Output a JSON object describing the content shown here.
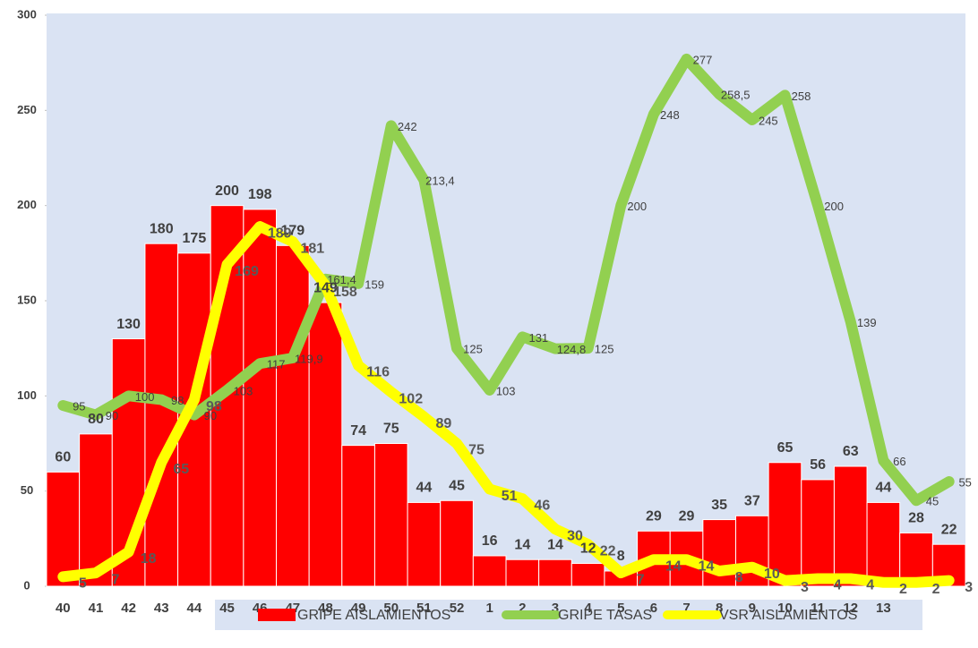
{
  "chart_data": {
    "type": "bar_line",
    "categories": [
      "40",
      "41",
      "42",
      "43",
      "44",
      "45",
      "46",
      "47",
      "48",
      "49",
      "50",
      "51",
      "52",
      "1",
      "2",
      "3",
      "4",
      "5",
      "6",
      "7",
      "8",
      "9",
      "10",
      "11",
      "12",
      "13",
      null,
      null
    ],
    "series": [
      {
        "name": "GRIPE AISLAMIENTOS",
        "type": "bar",
        "color": "#ff0000",
        "values": [
          60,
          80,
          130,
          180,
          175,
          200,
          198,
          179,
          149,
          74,
          75,
          44,
          45,
          16,
          14,
          14,
          12,
          8,
          29,
          29,
          35,
          37,
          65,
          56,
          63,
          44,
          28,
          22
        ]
      },
      {
        "name": "GRIPE TASAS",
        "type": "line",
        "color": "#92d050",
        "values": [
          95,
          90,
          100,
          98,
          90,
          103,
          117,
          119.9,
          161.4,
          159,
          242,
          213.4,
          125,
          103,
          131,
          124.8,
          125,
          200,
          248,
          277,
          258.5,
          245,
          258,
          200,
          139,
          66,
          45,
          55
        ],
        "value_labels": [
          "95",
          "90",
          "100",
          "98",
          "90",
          "103",
          "117",
          "119,9",
          "161,4",
          "159",
          "242",
          "213,4",
          "125",
          "103",
          "131",
          "124,8",
          "125",
          "200",
          "248",
          "277",
          "258,5",
          "245",
          "258",
          "200",
          "139",
          "66",
          "45",
          "55"
        ]
      },
      {
        "name": "VSR AISLAMIENTOS",
        "type": "line",
        "color": "#ffff00",
        "values": [
          5,
          7,
          18,
          65,
          98,
          169,
          189,
          181,
          158,
          116,
          102,
          89,
          75,
          51,
          46,
          30,
          22,
          7,
          14,
          14,
          8,
          10,
          3,
          4,
          4,
          2,
          2,
          3
        ]
      }
    ],
    "ylim": [
      0,
      300
    ],
    "yticks": [
      0,
      50,
      100,
      150,
      200,
      250,
      300
    ],
    "legend": "bottom"
  }
}
